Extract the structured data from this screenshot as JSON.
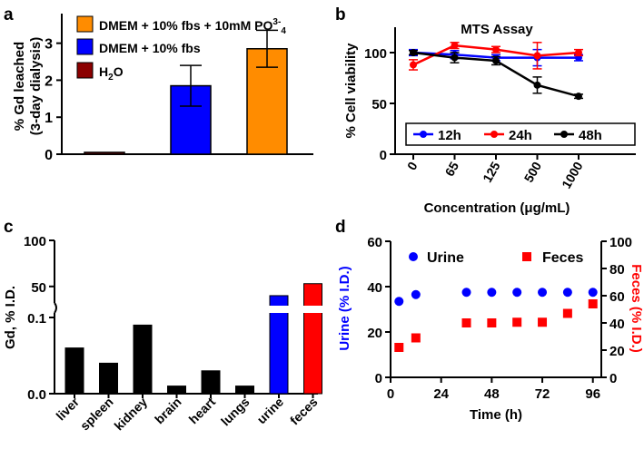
{
  "chart_data": [
    {
      "panel": "a",
      "type": "bar",
      "ylabel_line1": "% Gd leached",
      "ylabel_line2": "(3-day dialysis)",
      "ylim": [
        0,
        3.8
      ],
      "yticks": [
        0,
        1,
        2,
        3
      ],
      "bars": [
        {
          "name": "H2O",
          "value": 0.05,
          "error": 0,
          "color": "#8B0000"
        },
        {
          "name": "DMEM + 10% fbs",
          "value": 1.85,
          "error": 0.55,
          "color": "#0000FF"
        },
        {
          "name": "DMEM + 10% fbs + 10mM PO3-4",
          "value": 2.85,
          "error": 0.5,
          "color": "#FF8C00"
        }
      ],
      "legend": [
        {
          "label": "DMEM + 10% fbs + 10mM PO",
          "sup": "3-",
          "sub": "4",
          "color": "#FF8C00"
        },
        {
          "label": "DMEM + 10% fbs",
          "color": "#0000FF"
        },
        {
          "label": "H",
          "sub": "2",
          "suffix": "O",
          "color": "#8B0000"
        }
      ]
    },
    {
      "panel": "b",
      "type": "line",
      "title": "MTS Assay",
      "xlabel": "Concentration (μg/mL)",
      "ylabel": "% Cell viability",
      "categories": [
        "0",
        "65",
        "125",
        "500",
        "1000"
      ],
      "ylim": [
        0,
        125
      ],
      "yticks": [
        0,
        50,
        100
      ],
      "series": [
        {
          "name": "12h",
          "color": "#0000FF",
          "values": [
            100,
            98,
            95,
            95,
            95
          ],
          "errors": [
            3,
            4,
            3,
            8,
            3
          ]
        },
        {
          "name": "24h",
          "color": "#FF0000",
          "values": [
            88,
            107,
            103,
            97,
            100
          ],
          "errors": [
            5,
            3,
            3,
            13,
            3
          ]
        },
        {
          "name": "48h",
          "color": "#000000",
          "values": [
            100,
            95,
            92,
            68,
            57
          ],
          "errors": [
            2,
            5,
            4,
            8,
            2
          ]
        }
      ]
    },
    {
      "panel": "c",
      "type": "bar",
      "ylabel": "Gd, % I.D.",
      "yticks_lower": [
        "0.0",
        "0.1"
      ],
      "yticks_upper": [
        "50",
        "100"
      ],
      "categories": [
        "liver",
        "spleen",
        "kidney",
        "brain",
        "heart",
        "lungs",
        "urine",
        "feces"
      ],
      "values": [
        0.06,
        0.04,
        0.09,
        0.01,
        0.03,
        0.01,
        40,
        53
      ],
      "colors": [
        "#000000",
        "#000000",
        "#000000",
        "#000000",
        "#000000",
        "#000000",
        "#0000FF",
        "#FF0000"
      ]
    },
    {
      "panel": "d",
      "type": "scatter",
      "xlabel": "Time (h)",
      "ylabel_left": "Urine (% I.D.)",
      "ylabel_right": "Feces (% I.D.)",
      "xlim": [
        0,
        100
      ],
      "xticks": [
        0,
        24,
        48,
        72,
        96
      ],
      "ylim_left": [
        0,
        60
      ],
      "yticks_left": [
        0,
        20,
        40,
        60
      ],
      "ylim_right": [
        0,
        100
      ],
      "yticks_right": [
        0,
        20,
        40,
        60,
        80,
        100
      ],
      "series": [
        {
          "name": "Urine",
          "color": "#0000FF",
          "marker": "circle",
          "axis": "left",
          "x": [
            4,
            12,
            36,
            48,
            60,
            72,
            84,
            96
          ],
          "y": [
            33.5,
            36.5,
            37.5,
            37.5,
            37.5,
            37.5,
            37.5,
            37.5
          ]
        },
        {
          "name": "Feces",
          "color": "#FF0000",
          "marker": "square",
          "axis": "right",
          "x": [
            4,
            12,
            36,
            48,
            60,
            72,
            84,
            96
          ],
          "y": [
            22,
            29,
            40,
            40,
            40.5,
            40.5,
            47,
            54
          ]
        }
      ]
    }
  ],
  "panel_labels": {
    "a": "a",
    "b": "b",
    "c": "c",
    "d": "d"
  }
}
